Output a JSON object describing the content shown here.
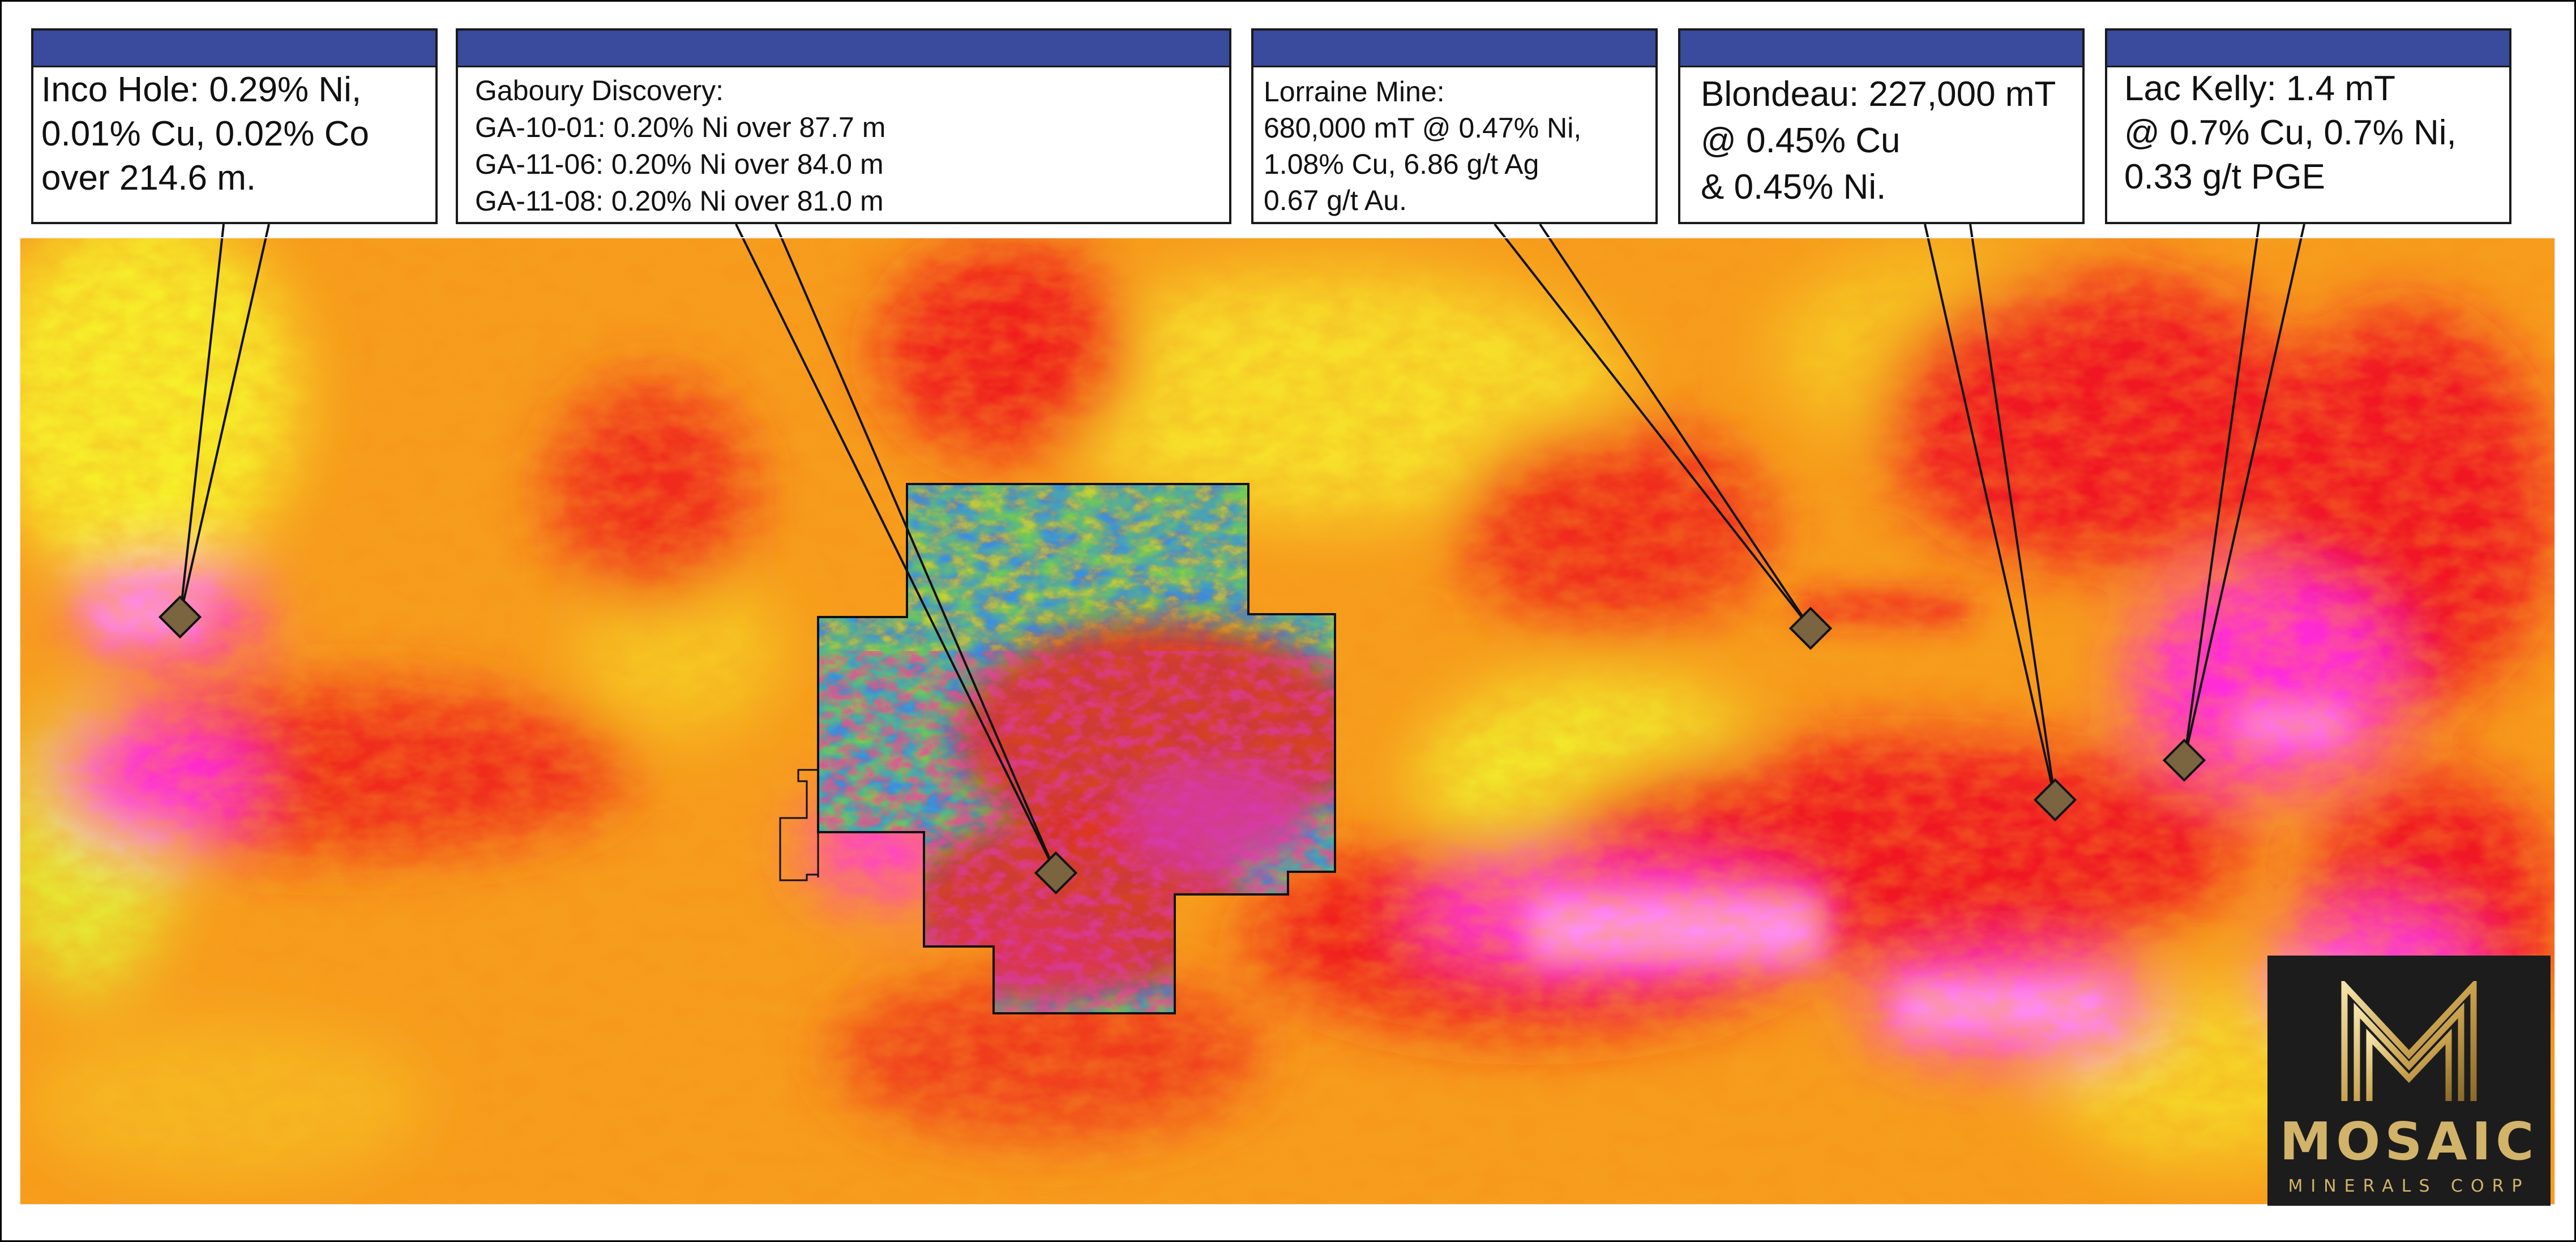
{
  "callouts": [
    {
      "id": "inco-hole",
      "text": "Inco Hole: 0.29% Ni,\n0.01% Cu, 0.02% Co\nover 214.6 m."
    },
    {
      "id": "gaboury-discovery",
      "text": "Gaboury Discovery:\nGA-10-01: 0.20% Ni over 87.7 m\nGA-11-06: 0.20% Ni over 84.0 m\nGA-11-08: 0.20% Ni over 81.0 m"
    },
    {
      "id": "lorraine-mine",
      "text": "Lorraine Mine:\n680,000 mT @ 0.47% Ni,\n1.08% Cu, 6.86 g/t Ag\n0.67 g/t Au."
    },
    {
      "id": "blondeau",
      "text": "Blondeau: 227,000 mT\n@ 0.45% Cu\n&   0.45% Ni."
    },
    {
      "id": "lac-kelly",
      "text": "Lac Kelly: 1.4 mT\n@ 0.7% Cu, 0.7% Ni,\n0.33 g/t PGE"
    }
  ],
  "logo": {
    "name": "MOSAIC",
    "subtitle": "MINERALS CORP"
  },
  "colors": {
    "callout_header": "#3a4a9c",
    "marker": "#7a6540",
    "logo_gold": "#d2b36a",
    "heat_yellow": "#f7ee2a",
    "heat_orange": "#f79a1c",
    "heat_red": "#f01620",
    "heat_magenta": "#ff2ad8"
  }
}
